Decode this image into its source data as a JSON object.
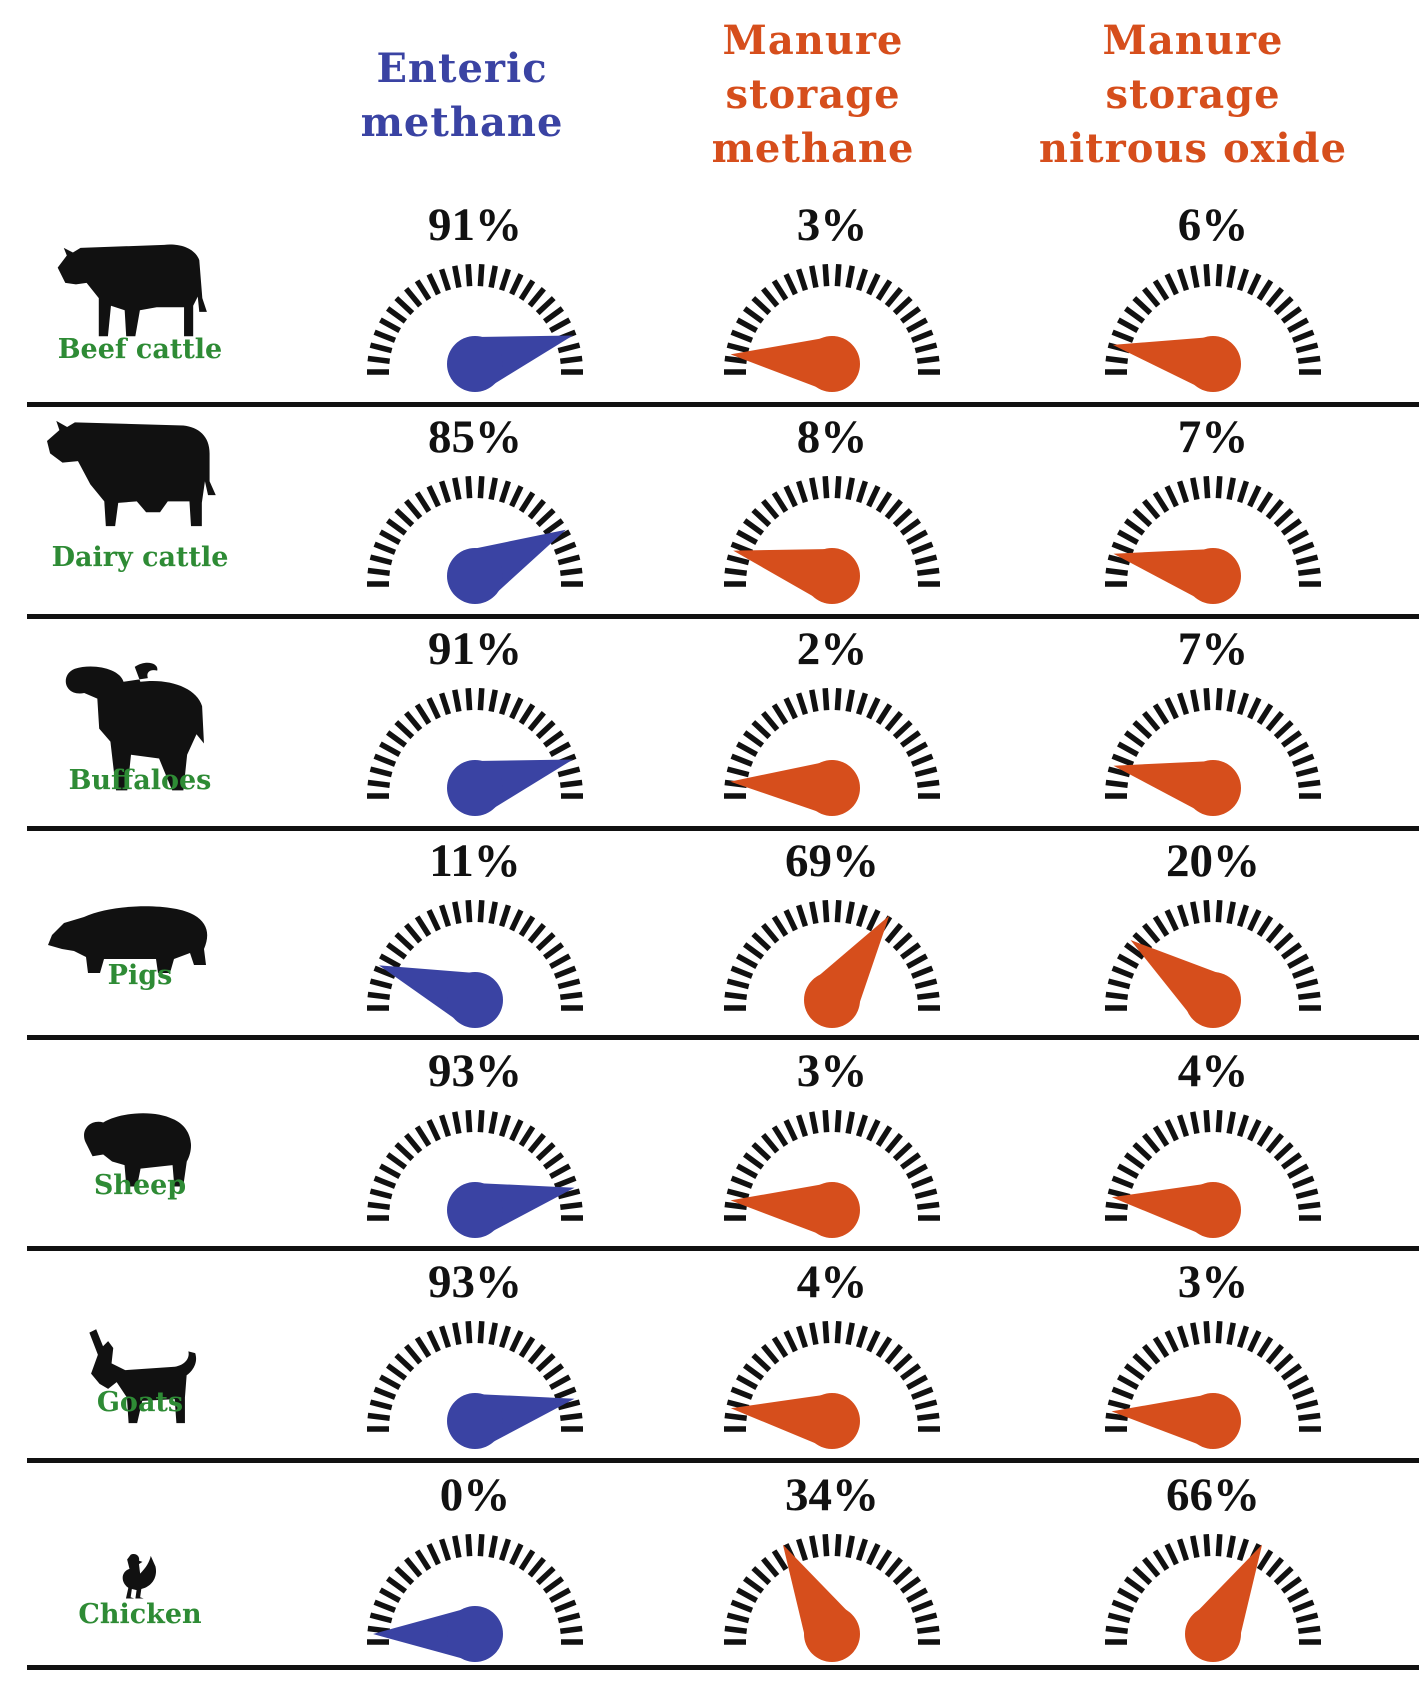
{
  "headers": [
    {
      "lines": [
        "Enteric",
        "methane"
      ],
      "color": "#3a43a3"
    },
    {
      "lines": [
        "Manure",
        "storage",
        "methane"
      ],
      "color": "#d64e1c"
    },
    {
      "lines": [
        "Manure",
        "storage",
        "nitrous oxide"
      ],
      "color": "#d64e1c"
    }
  ],
  "colors": {
    "enteric": "#3a43a3",
    "manure": "#d64e1c",
    "label_green": "#2e8b35",
    "ink": "#111111"
  },
  "rows": [
    {
      "animal": "Beef cattle",
      "icon": "cow-silhouette-icon",
      "values": [
        "91%",
        "3%",
        "6%"
      ]
    },
    {
      "animal": "Dairy cattle",
      "icon": "dairy-cow-silhouette-icon",
      "values": [
        "85%",
        "8%",
        "7%"
      ]
    },
    {
      "animal": "Buffaloes",
      "icon": "buffalo-silhouette-icon",
      "values": [
        "91%",
        "2%",
        "7%"
      ]
    },
    {
      "animal": "Pigs",
      "icon": "pig-silhouette-icon",
      "values": [
        "11%",
        "69%",
        "20%"
      ]
    },
    {
      "animal": "Sheep",
      "icon": "sheep-silhouette-icon",
      "values": [
        "93%",
        "3%",
        "4%"
      ]
    },
    {
      "animal": "Goats",
      "icon": "goat-silhouette-icon",
      "values": [
        "93%",
        "4%",
        "3%"
      ]
    },
    {
      "animal": "Chicken",
      "icon": "chicken-silhouette-icon",
      "values": [
        "0%",
        "34%",
        "66%"
      ]
    }
  ]
}
